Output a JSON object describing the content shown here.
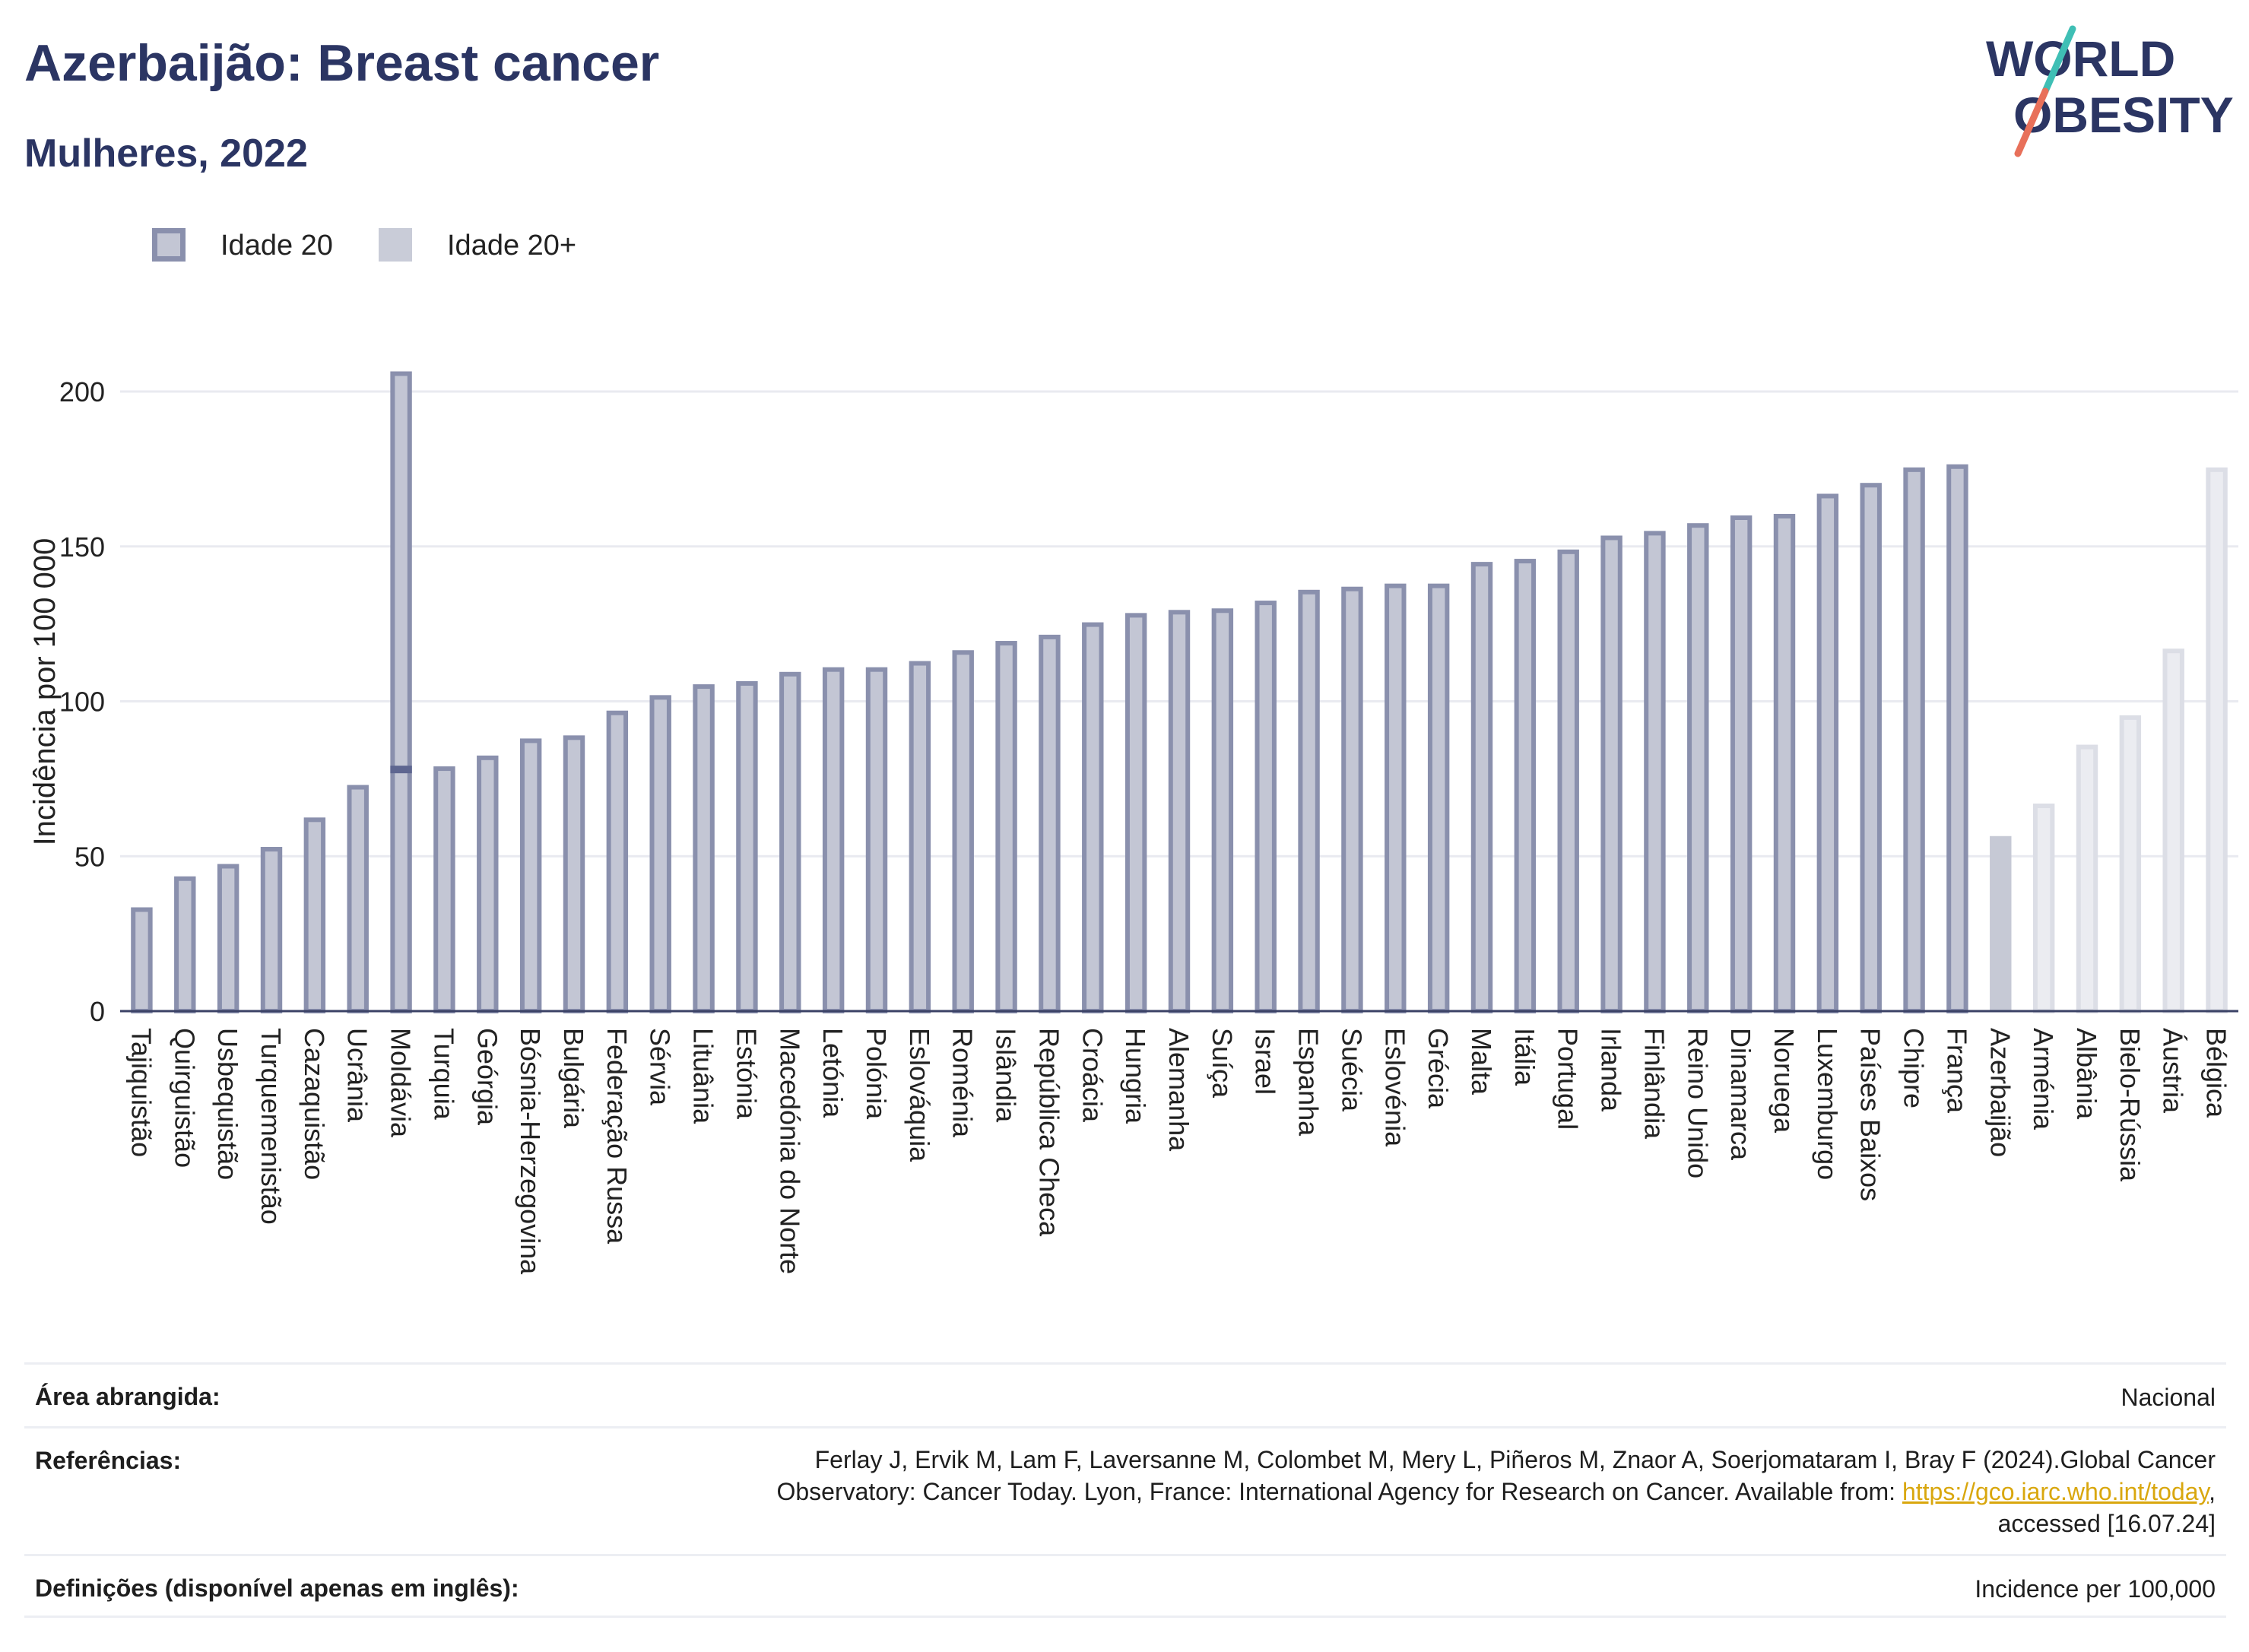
{
  "header": {
    "title": "Azerbaijão: Breast cancer",
    "subtitle": "Mulheres, 2022"
  },
  "logo": {
    "line1": "WORLD",
    "line2": "OBESITY",
    "accent_teal": "#3fbfb5",
    "accent_coral": "#e8705a"
  },
  "legend": {
    "items": [
      {
        "label": "Idade 20",
        "style": "outlined",
        "fill": "#c3c6d4",
        "border": "#8a90ad"
      },
      {
        "label": "Idade 20+",
        "style": "solid",
        "fill": "#c9ccd8"
      }
    ]
  },
  "chart_data": {
    "type": "bar",
    "ylabel": "Incidência por 100 000",
    "ylim": [
      0,
      220
    ],
    "yticks": [
      0,
      50,
      100,
      150,
      200
    ],
    "grid": true,
    "legend_position": "top-left",
    "categories": [
      "Tajiquistão",
      "Quirguistão",
      "Usbequistão",
      "Turquemenistão",
      "Cazaquistão",
      "Ucrânia",
      "Moldávia",
      "Turquia",
      "Geórgia",
      "Bósnia-Herzegovina",
      "Bulgária",
      "Federação Russa",
      "Sérvia",
      "Lituânia",
      "Estónia",
      "Macedónia do Norte",
      "Letónia",
      "Polónia",
      "Eslováquia",
      "Roménia",
      "Islândia",
      "República Checa",
      "Croácia",
      "Hungria",
      "Alemanha",
      "Suíça",
      "Israel",
      "Espanha",
      "Suécia",
      "Eslovénia",
      "Grécia",
      "Malta",
      "Itália",
      "Portugal",
      "Irlanda",
      "Finlândia",
      "Reino Unido",
      "Dinamarca",
      "Noruega",
      "Luxemburgo",
      "Países Baixos",
      "Chipre",
      "França",
      "Azerbaijão",
      "Arménia",
      "Albânia",
      "Bielo-Rússia",
      "Áustria",
      "Bélgica"
    ],
    "values": [
      33.5,
      43.5,
      47.5,
      53,
      62.5,
      73,
      206.5,
      79,
      82.5,
      88,
      89,
      97,
      102,
      105.5,
      106.5,
      109.5,
      111,
      111,
      113,
      116.5,
      119.5,
      121.5,
      125.5,
      128.5,
      129.5,
      130,
      132.5,
      136,
      137,
      138,
      138,
      145,
      146,
      149,
      153.5,
      155,
      157.5,
      160,
      160.5,
      167,
      170.5,
      175.5,
      176.5,
      56.5,
      67,
      86,
      95.5,
      117,
      175.5
    ],
    "markers": [
      {
        "category": "Moldávia",
        "value": 78
      }
    ],
    "bar_styles": {
      "outlined_fill": "#c3c6d4",
      "outlined_border": "#8a90ad",
      "highlight_fill": "#c6c9d5",
      "faded_fill": "#ebecf1",
      "faded_border": "#dcdee6",
      "marker_color": "#5e6690",
      "axis_color": "#3b4266",
      "grid_color": "#e9eaf0"
    }
  },
  "info": {
    "area_label": "Área abrangida:",
    "area_value": "Nacional",
    "ref_label": "Referências:",
    "ref_line1": "Ferlay J, Ervik M, Lam F, Laversanne M, Colombet M, Mery L, Piñeros M, Znaor A, Soerjomataram I, Bray F (2024).Global Cancer",
    "ref_line2_pre": "Observatory: Cancer Today. Lyon, France: International Agency for Research on Cancer. Available from: ",
    "ref_link": "https://gco.iarc.who.int/today",
    "ref_line2_post": ",",
    "ref_line3": "accessed [16.07.24]",
    "def_label": "Definições (disponível apenas em inglês):",
    "def_value": "Incidence per 100,000"
  }
}
